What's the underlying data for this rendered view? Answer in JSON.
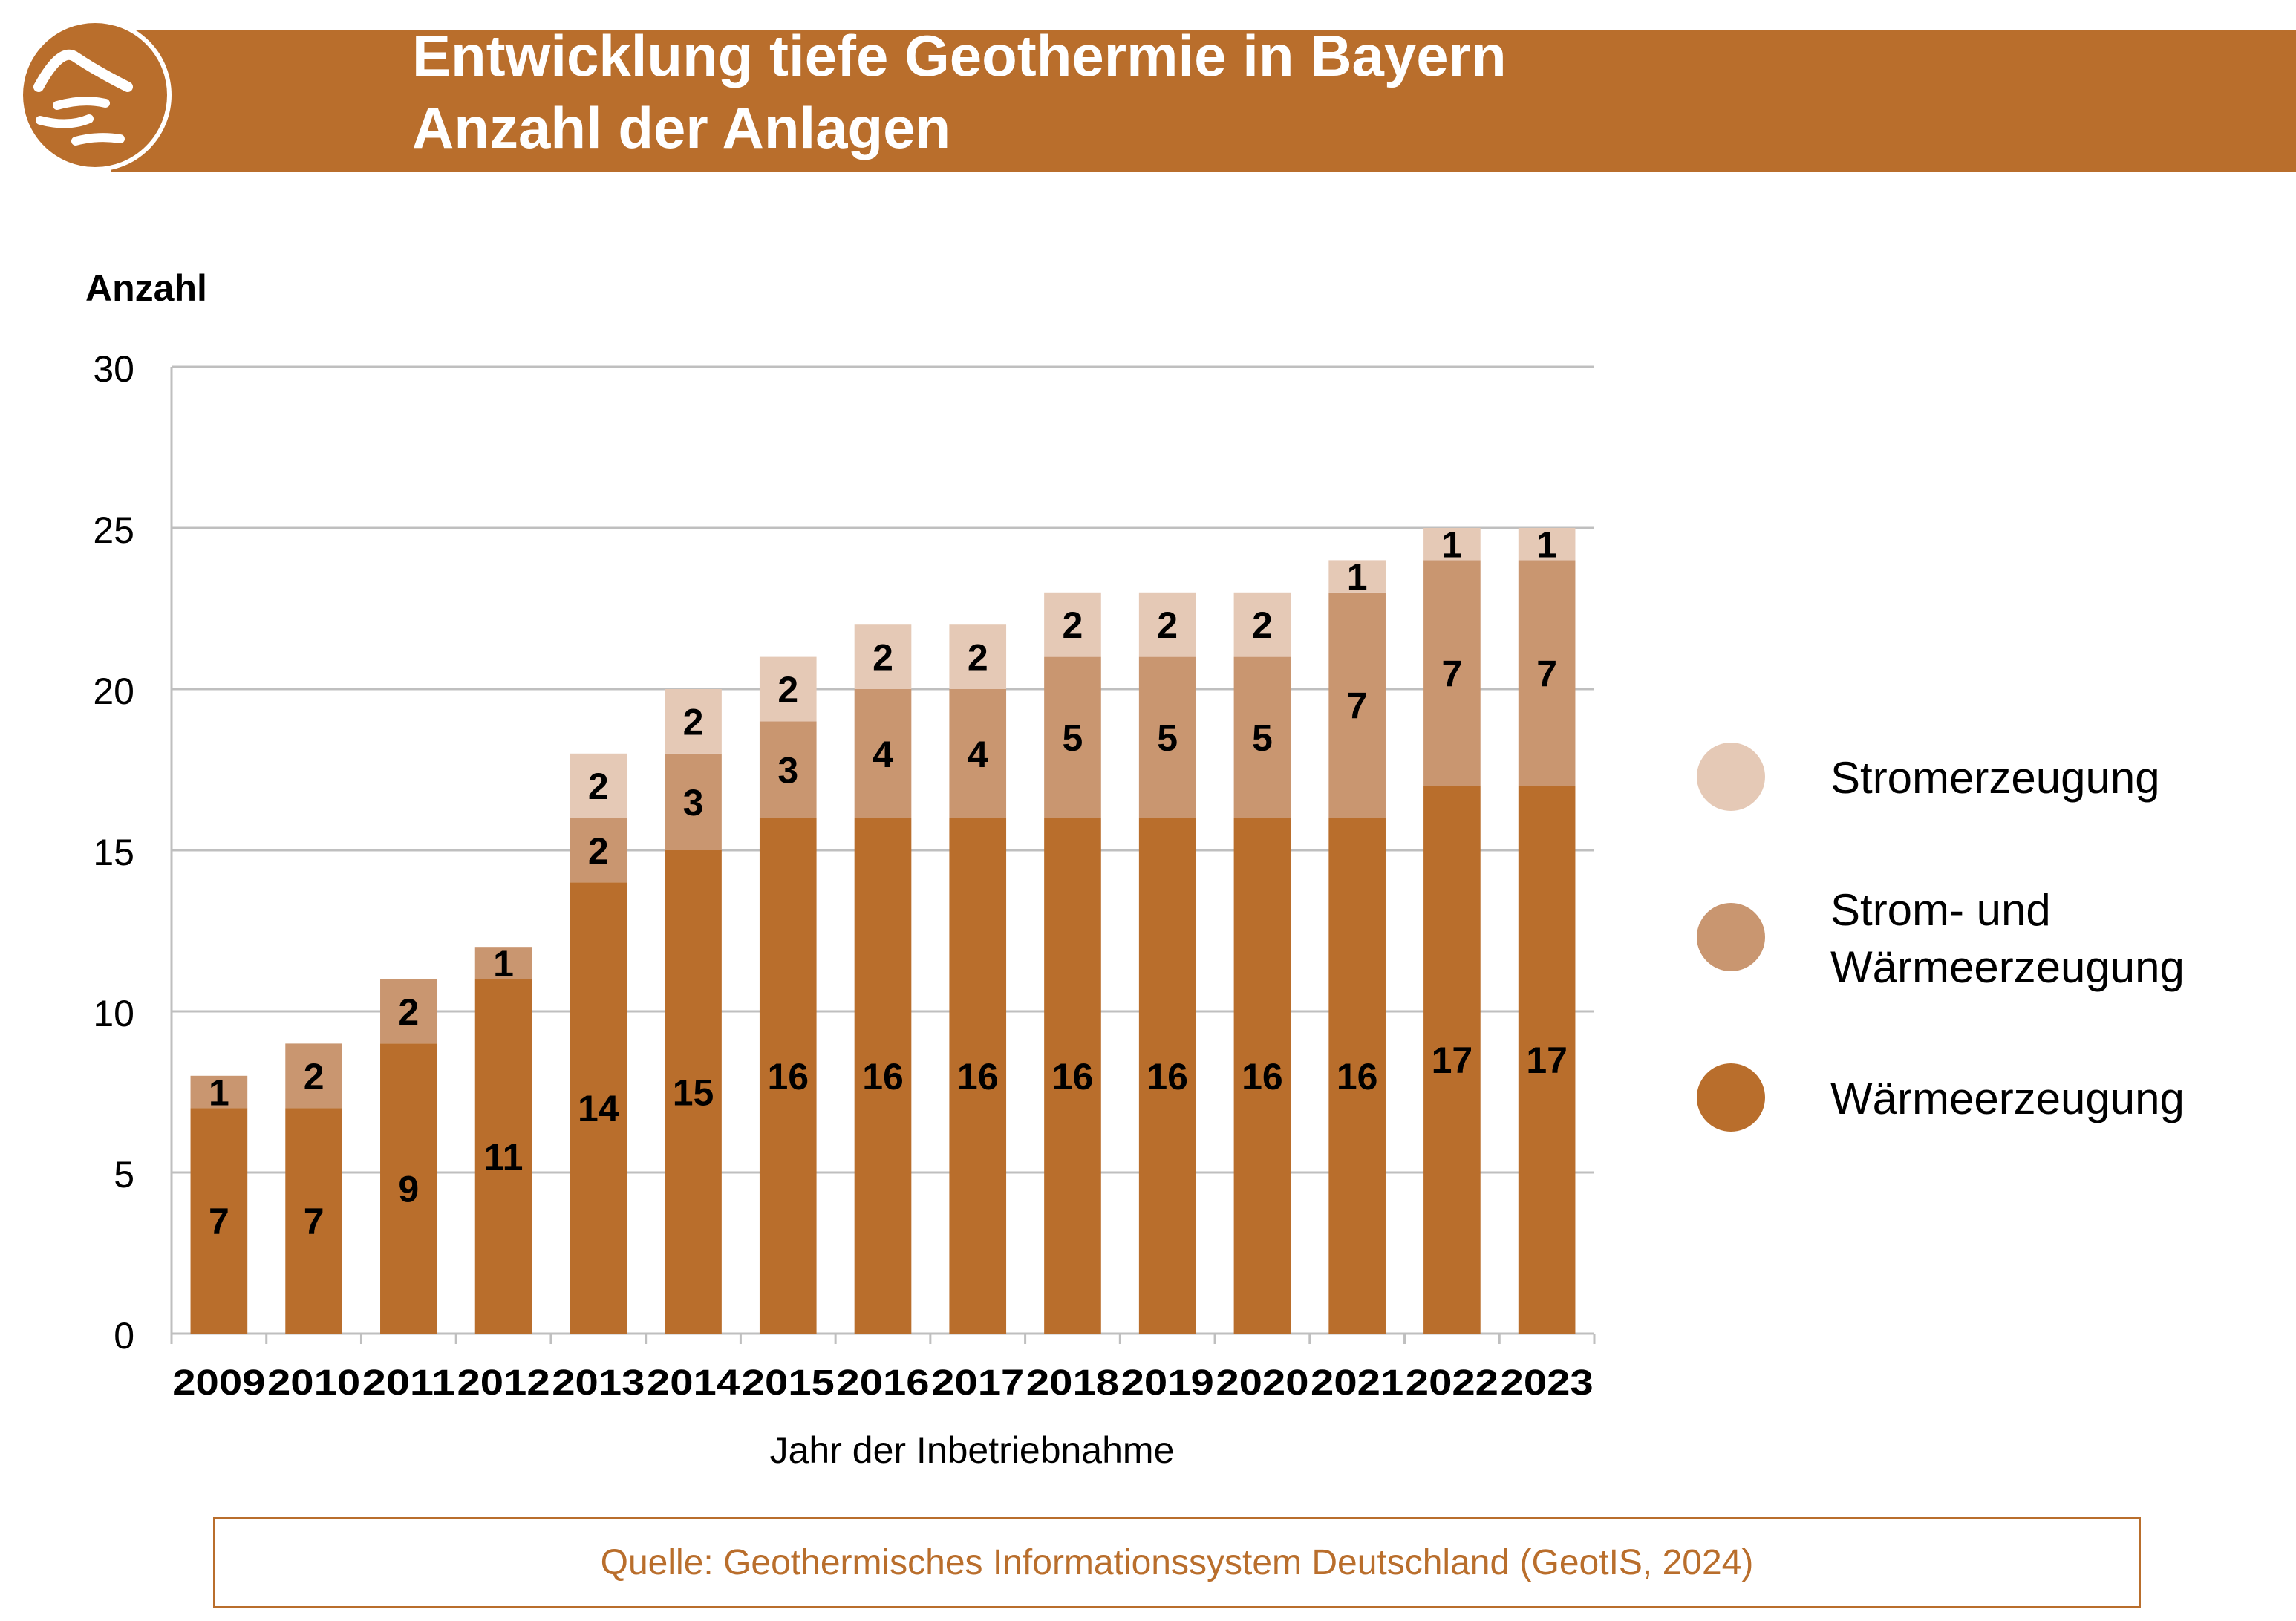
{
  "header": {
    "title_line1": "Entwicklung tiefe Geothermie in Bayern",
    "title_line2": "Anzahl der Anlagen",
    "logo_icon": "geothermal-logo-icon",
    "brand_color": "#B96E2C"
  },
  "source": "Quelle: Geothermisches Informationssystem Deutschland (GeotIS, 2024)",
  "chart_data": {
    "type": "bar",
    "stacked": true,
    "title": "Entwicklung tiefe Geothermie in Bayern – Anzahl der Anlagen",
    "xlabel": "Jahr der Inbetriebnahme",
    "ylabel": "Anzahl",
    "ylim": [
      0,
      30
    ],
    "yticks": [
      0,
      5,
      10,
      15,
      20,
      25,
      30
    ],
    "grid": true,
    "legend_position": "right",
    "categories": [
      "2009",
      "2010",
      "2011",
      "2012",
      "2013",
      "2014",
      "2015",
      "2016",
      "2017",
      "2018",
      "2019",
      "2020",
      "2021",
      "2022",
      "2023"
    ],
    "series": [
      {
        "name": "Wärmeerzeugung",
        "color": "#B96E2C",
        "values": [
          7,
          7,
          9,
          11,
          14,
          15,
          16,
          16,
          16,
          16,
          16,
          16,
          16,
          17,
          17
        ]
      },
      {
        "name": "Strom- und Wärmeerzeugung",
        "color": "#C99670",
        "values": [
          1,
          2,
          2,
          1,
          2,
          3,
          3,
          4,
          4,
          5,
          5,
          5,
          7,
          7,
          7
        ]
      },
      {
        "name": "Stromerzeugung",
        "color": "#E5C9B6",
        "values": [
          0,
          0,
          0,
          0,
          2,
          2,
          2,
          2,
          2,
          2,
          2,
          2,
          1,
          1,
          1
        ]
      }
    ],
    "legend": [
      {
        "label": "Stromerzeugung",
        "color": "#E5C9B6"
      },
      {
        "label_line1": "Strom- und",
        "label_line2": "Wärmeerzeugung",
        "color": "#C99670"
      },
      {
        "label": "Wärmeerzeugung",
        "color": "#B96E2C"
      }
    ]
  }
}
